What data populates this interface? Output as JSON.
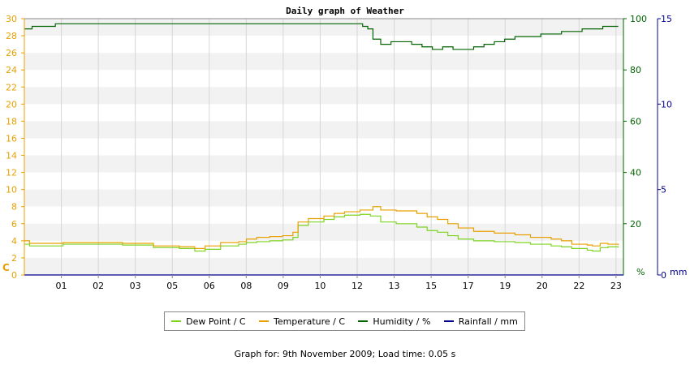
{
  "chart_data": {
    "type": "line",
    "title": "Daily graph of Weather",
    "x_ticks": [
      "01",
      "02",
      "03",
      "05",
      "06",
      "08",
      "09",
      "10",
      "12",
      "13",
      "15",
      "17",
      "19",
      "20",
      "22",
      "23"
    ],
    "left_axis": {
      "unit": "C",
      "range": [
        0,
        30
      ],
      "ticks": [
        0,
        2,
        4,
        6,
        8,
        10,
        12,
        14,
        16,
        18,
        20,
        22,
        24,
        26,
        28,
        30
      ],
      "color": "#e8a000"
    },
    "right_axis_1": {
      "unit": "%",
      "range": [
        0,
        100
      ],
      "ticks": [
        0,
        20,
        40,
        60,
        80,
        100
      ],
      "color": "#006400"
    },
    "right_axis_2": {
      "unit": "mm",
      "range": [
        0,
        15
      ],
      "ticks": [
        0,
        5,
        10,
        15
      ],
      "color": "#00008b"
    },
    "grid": "horizontal-bands",
    "legend_position": "bottom",
    "series": [
      {
        "name": "Dew Point / C",
        "axis": "left",
        "color": "#7ed321",
        "x": [
          0,
          0.2,
          1.5,
          2.8,
          3.8,
          5,
          6,
          6.6,
          7,
          7.6,
          8.3,
          8.6,
          9,
          9.5,
          10,
          10.4,
          10.6,
          11,
          11.6,
          12,
          12.4,
          13,
          13.4,
          13.8,
          14.4,
          15.2,
          15.6,
          16,
          16.4,
          16.8,
          17.4,
          18.2,
          19,
          19.6,
          20.4,
          20.8,
          21.2,
          21.8,
          22,
          22.3,
          22.6,
          23
        ],
        "y": [
          3.6,
          3.4,
          3.6,
          3.6,
          3.5,
          3.2,
          3.1,
          2.8,
          3.0,
          3.4,
          3.6,
          3.8,
          3.9,
          4.0,
          4.1,
          4.4,
          5.8,
          6.2,
          6.5,
          6.8,
          7.0,
          7.1,
          6.9,
          6.2,
          6.0,
          5.6,
          5.2,
          5.0,
          4.6,
          4.2,
          4.0,
          3.9,
          3.8,
          3.6,
          3.4,
          3.3,
          3.1,
          2.9,
          2.8,
          3.2,
          3.3,
          3.2
        ]
      },
      {
        "name": "Temperature / C",
        "axis": "left",
        "color": "#e8a000",
        "x": [
          0,
          0.2,
          1.5,
          2.8,
          3.8,
          5,
          6,
          6.6,
          7,
          7.6,
          8.3,
          8.6,
          9,
          9.5,
          10,
          10.4,
          10.6,
          11,
          11.6,
          12,
          12.4,
          13,
          13.5,
          13.8,
          14.4,
          15.2,
          15.6,
          16,
          16.4,
          16.8,
          17.4,
          18.2,
          19,
          19.6,
          20.4,
          20.8,
          21.2,
          21.8,
          22,
          22.3,
          22.6,
          23
        ],
        "y": [
          4.0,
          3.7,
          3.8,
          3.8,
          3.7,
          3.4,
          3.3,
          3.1,
          3.4,
          3.8,
          3.9,
          4.2,
          4.4,
          4.5,
          4.6,
          5.0,
          6.2,
          6.6,
          6.9,
          7.2,
          7.4,
          7.6,
          8.0,
          7.6,
          7.5,
          7.2,
          6.8,
          6.5,
          6.0,
          5.5,
          5.1,
          4.9,
          4.7,
          4.4,
          4.2,
          4.0,
          3.6,
          3.5,
          3.4,
          3.7,
          3.6,
          3.5
        ]
      },
      {
        "name": "Humidity / %",
        "axis": "right_1",
        "color": "#006400",
        "x": [
          0,
          0.3,
          1.2,
          12.9,
          13.1,
          13.3,
          13.5,
          13.8,
          14.2,
          14.6,
          15,
          15.4,
          15.8,
          16.2,
          16.6,
          17,
          17.4,
          17.8,
          18.2,
          18.6,
          19,
          19.6,
          20,
          20.4,
          20.8,
          21.2,
          21.6,
          22,
          22.4,
          22.8,
          23
        ],
        "y": [
          96,
          97,
          98,
          98,
          97,
          96,
          92,
          90,
          91,
          91,
          90,
          89,
          88,
          89,
          88,
          88,
          89,
          90,
          91,
          92,
          93,
          93,
          94,
          94,
          95,
          95,
          96,
          96,
          97,
          97,
          97
        ],
        "ylim": [
          0,
          100
        ]
      },
      {
        "name": "Rainfall / mm",
        "axis": "right_2",
        "color": "#00008b",
        "x": [
          0,
          23.2
        ],
        "y": [
          0,
          0
        ]
      }
    ]
  },
  "footer": {
    "text": "Graph for: 9th November 2009; Load time: 0.05 s"
  }
}
